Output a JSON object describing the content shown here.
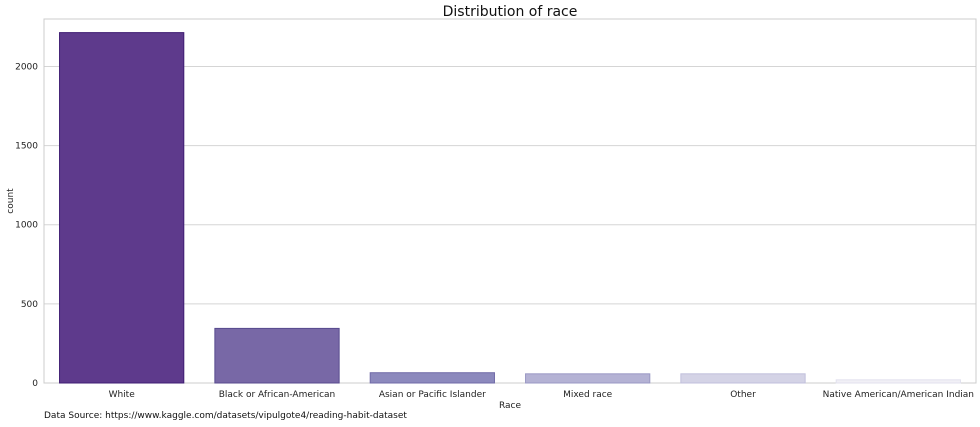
{
  "chart_data": {
    "type": "bar",
    "title": "Distribution of race",
    "xlabel": "Race",
    "ylabel": "count",
    "categories": [
      "White",
      "Black or African-American",
      "Asian or Pacific Islander",
      "Mixed race",
      "Other",
      "Native American/American Indian"
    ],
    "values": [
      2214,
      345,
      65,
      58,
      58,
      20
    ],
    "colors": [
      "#5e3a8c",
      "#7868a6",
      "#8c89bd",
      "#b4b2d4",
      "#d4d3e6",
      "#f1f0f6"
    ],
    "edge_colors": [
      "#3f1d73",
      "#574a8e",
      "#6f6aa8",
      "#9a98c4",
      "#c0bfdc",
      "#e2e1ee"
    ],
    "ylim": [
      0,
      2300
    ],
    "yticks": [
      0,
      500,
      1000,
      1500,
      2000
    ],
    "grid": "y"
  },
  "footer": {
    "source_text": "Data Source: https://www.kaggle.com/datasets/vipulgote4/reading-habit-dataset"
  }
}
